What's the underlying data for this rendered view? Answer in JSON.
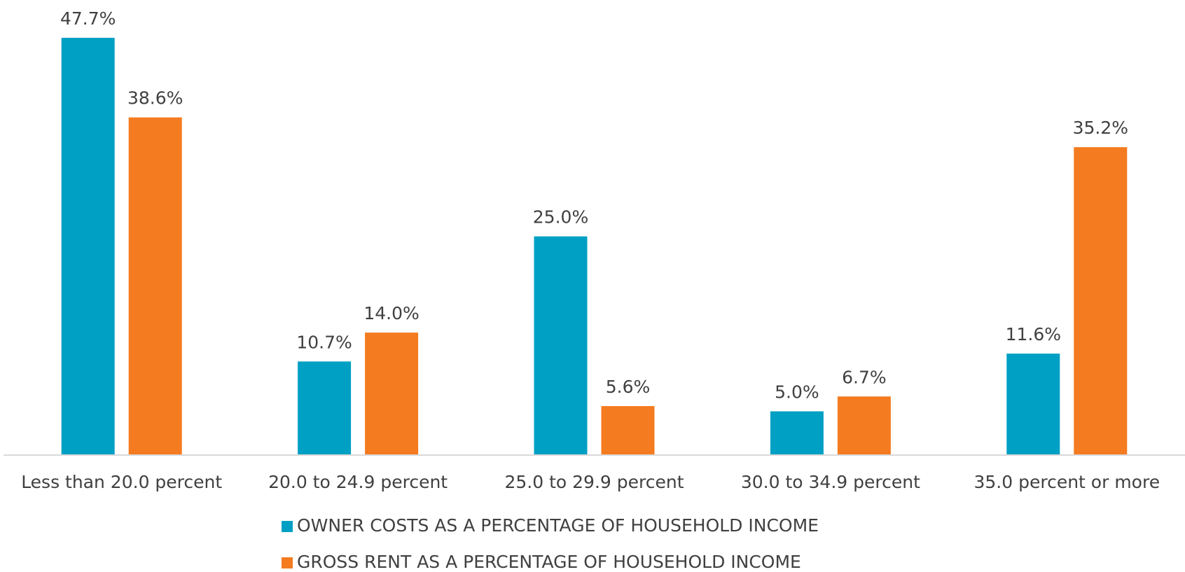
{
  "chart_data": {
    "type": "bar",
    "categories": [
      "Less than 20.0 percent",
      "20.0 to 24.9 percent",
      "25.0 to 29.9 percent",
      "30.0 to 34.9 percent",
      "35.0 percent or more"
    ],
    "series": [
      {
        "name": "OWNER COSTS AS A PERCENTAGE OF HOUSEHOLD INCOME",
        "color": "#00a0c4",
        "values": [
          47.7,
          10.7,
          25.0,
          5.0,
          11.6
        ],
        "value_labels": [
          "47.7%",
          "10.7%",
          "25.0%",
          "5.0%",
          "11.6%"
        ]
      },
      {
        "name": "GROSS RENT AS A PERCENTAGE OF HOUSEHOLD INCOME",
        "color": "#f47b20",
        "values": [
          38.6,
          14.0,
          5.6,
          6.7,
          35.2
        ],
        "value_labels": [
          "38.6%",
          "14.0%",
          "5.6%",
          "6.7%",
          "35.2%"
        ]
      }
    ],
    "legend": "bottom"
  }
}
